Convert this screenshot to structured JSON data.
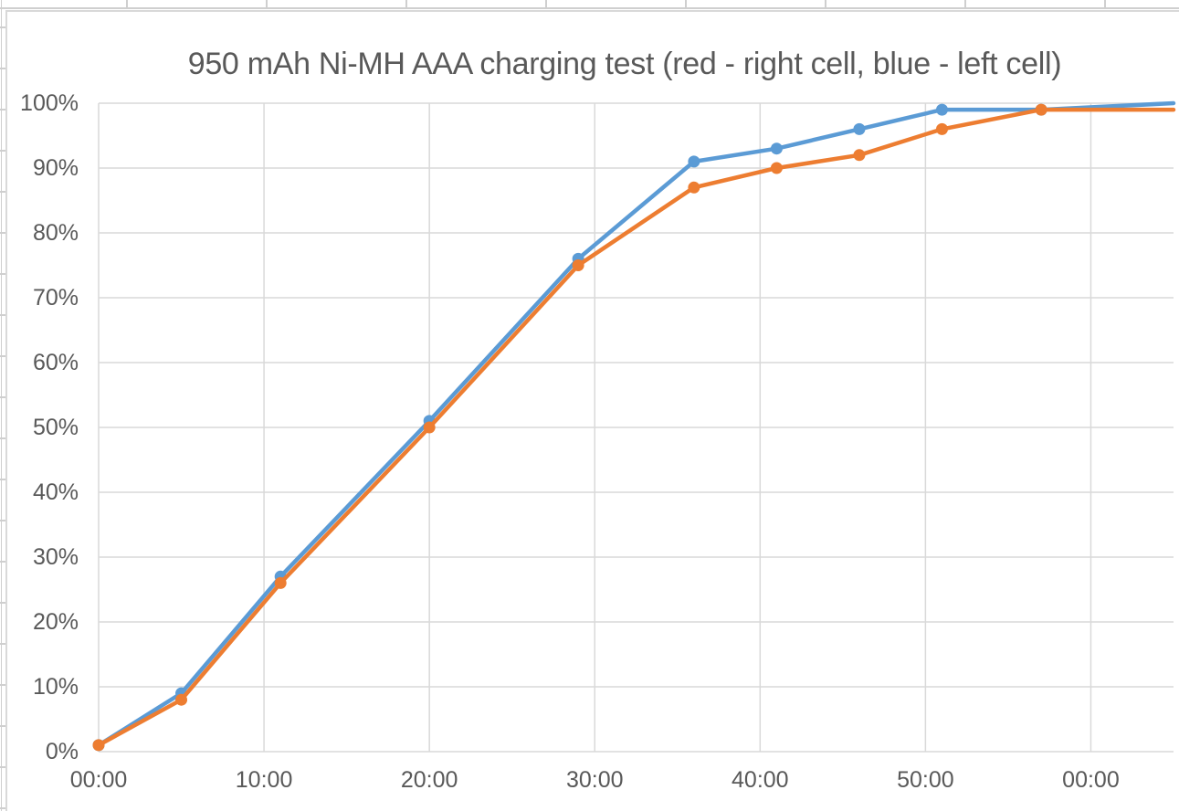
{
  "colors": {
    "series_blue": "#5B9BD5",
    "series_orange": "#ED7D31",
    "gridline": "#D9D9D9",
    "axis_text": "#595959",
    "title_text": "#595959",
    "chart_border": "#D9D9D9",
    "worksheet_line": "#CFCFCF",
    "background": "#FFFFFF"
  },
  "chart_data": {
    "type": "line",
    "title": "950 mAh Ni-MH AAA charging test (red - right cell, blue - left cell)",
    "x_unit": "elapsed time (mm:ss)",
    "x_times": [
      "00:00",
      "05:00",
      "11:00",
      "20:00",
      "29:00",
      "36:00",
      "41:00",
      "46:00",
      "51:00",
      "57:00",
      "65:00"
    ],
    "x_minutes": [
      0,
      5,
      11,
      20,
      29,
      36,
      41,
      46,
      51,
      57,
      65
    ],
    "series": [
      {
        "name": "blue - left cell",
        "color": "#5B9BD5",
        "values": [
          1,
          9,
          27,
          51,
          76,
          91,
          93,
          96,
          99,
          99,
          100
        ],
        "end_clipped": true
      },
      {
        "name": "red - right cell",
        "color": "#ED7D31",
        "values": [
          1,
          8,
          26,
          50,
          75,
          87,
          90,
          92,
          96,
          99,
          99
        ],
        "end_clipped": true
      }
    ],
    "x_axis": {
      "tick_labels": [
        "00:00",
        "10:00",
        "20:00",
        "30:00",
        "40:00",
        "50:00",
        "00:00"
      ],
      "tick_minutes": [
        0,
        10,
        20,
        30,
        40,
        50,
        60
      ],
      "min_minutes": 0,
      "max_minutes": 65
    },
    "y_axis": {
      "tick_labels": [
        "0%",
        "10%",
        "20%",
        "30%",
        "40%",
        "50%",
        "60%",
        "70%",
        "80%",
        "90%",
        "100%"
      ],
      "tick_values": [
        0,
        10,
        20,
        30,
        40,
        50,
        60,
        70,
        80,
        90,
        100
      ],
      "min": 0,
      "max": 100
    },
    "grid": true,
    "legend": "none",
    "markers": "circle"
  }
}
